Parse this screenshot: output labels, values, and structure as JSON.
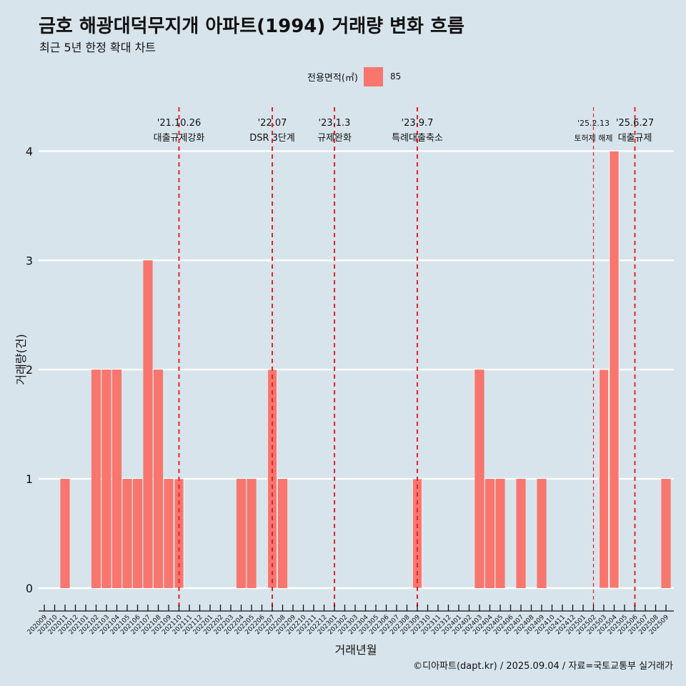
{
  "title": "금호 해광대덕무지개 아파트(1994) 거래량 변화 흐름",
  "subtitle": "최근 5년 한정 확대 차트",
  "caption": "©디아파트(dapt.kr) / 2025.09.04 / 자료=국토교통부 실거래가",
  "legend": {
    "title": "전용면적(㎡)",
    "items": [
      {
        "label": "85",
        "color": "#f8766d"
      }
    ]
  },
  "chart_data": {
    "type": "bar",
    "xlabel": "거래년월",
    "ylabel": "거래량(건)",
    "ylim": [
      0,
      4
    ],
    "yticks": [
      0,
      1,
      2,
      3,
      4
    ],
    "grid": true,
    "legend_position": "top",
    "bar_color": "#f8766d",
    "categories": [
      "202009",
      "202010",
      "202011",
      "202012",
      "202101",
      "202102",
      "202103",
      "202104",
      "202105",
      "202106",
      "202107",
      "202108",
      "202109",
      "202110",
      "202111",
      "202112",
      "202201",
      "202202",
      "202203",
      "202204",
      "202205",
      "202206",
      "202207",
      "202208",
      "202209",
      "202210",
      "202211",
      "202212",
      "202301",
      "202302",
      "202303",
      "202304",
      "202305",
      "202306",
      "202307",
      "202308",
      "202309",
      "202310",
      "202311",
      "202312",
      "202401",
      "202402",
      "202403",
      "202404",
      "202405",
      "202406",
      "202407",
      "202408",
      "202409",
      "202410",
      "202411",
      "202412",
      "202501",
      "202502",
      "202503",
      "202504",
      "202505",
      "202506",
      "202507",
      "202508",
      "202509"
    ],
    "values": [
      0,
      0,
      1,
      0,
      0,
      2,
      2,
      2,
      1,
      1,
      3,
      2,
      1,
      1,
      0,
      0,
      0,
      0,
      0,
      1,
      1,
      0,
      2,
      1,
      0,
      0,
      0,
      0,
      0,
      0,
      0,
      0,
      0,
      0,
      0,
      0,
      1,
      0,
      0,
      0,
      0,
      0,
      2,
      1,
      1,
      0,
      1,
      0,
      1,
      0,
      0,
      0,
      0,
      0,
      2,
      4,
      0,
      0,
      0,
      0,
      1
    ],
    "bar_outlines": [
      "202110",
      "202207",
      "202309",
      "202503",
      "202504"
    ],
    "annotations": [
      {
        "category": "202110",
        "date": "'21.10.26",
        "label": "대출규제강화"
      },
      {
        "category": "202207",
        "date": "'22.07",
        "label": "DSR 3단계"
      },
      {
        "category": "202301",
        "date": "'23.1.3",
        "label": "규제완화"
      },
      {
        "category": "202309",
        "date": "'23.9.7",
        "label": "특례대출축소"
      },
      {
        "category": "202502",
        "date": "'25.2.13",
        "label": "토허제 해제"
      },
      {
        "category": "202506",
        "date": "'25.6.27",
        "label": "대출규제"
      }
    ]
  }
}
